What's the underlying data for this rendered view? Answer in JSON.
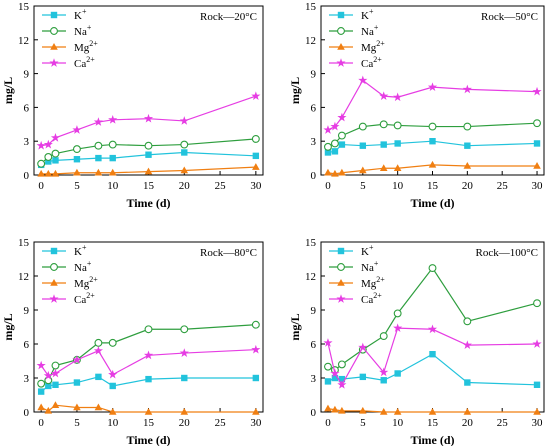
{
  "chart_data": [
    {
      "type": "line",
      "title": "Rock—20°C",
      "xlabel": "Time (d)",
      "ylabel": "mg/L",
      "xlim": [
        -1,
        31
      ],
      "ylim": [
        0,
        15
      ],
      "xticks": [
        0,
        5,
        10,
        15,
        20,
        25,
        30
      ],
      "yticks": [
        0,
        3,
        6,
        9,
        12,
        15
      ],
      "legend": "top-left",
      "x": [
        0,
        1,
        2,
        5,
        8,
        10,
        15,
        20,
        30
      ],
      "series": [
        {
          "name": "K⁺",
          "values": [
            0.9,
            1.2,
            1.3,
            1.4,
            1.5,
            1.5,
            1.8,
            2.0,
            1.7
          ]
        },
        {
          "name": "Na⁺",
          "values": [
            1.0,
            1.6,
            1.9,
            2.3,
            2.6,
            2.7,
            2.6,
            2.7,
            3.2
          ]
        },
        {
          "name": "Mg²⁺",
          "values": [
            0.1,
            0.1,
            0.1,
            0.2,
            0.2,
            0.2,
            0.3,
            0.4,
            0.7
          ]
        },
        {
          "name": "Ca²⁺",
          "values": [
            2.6,
            2.7,
            3.3,
            4.0,
            4.7,
            4.9,
            5.0,
            4.8,
            7.0
          ]
        }
      ]
    },
    {
      "type": "line",
      "title": "Rock—50°C",
      "xlabel": "Time (d)",
      "ylabel": "mg/L",
      "xlim": [
        -1,
        31
      ],
      "ylim": [
        0,
        15
      ],
      "xticks": [
        0,
        5,
        10,
        15,
        20,
        25,
        30
      ],
      "yticks": [
        0,
        3,
        6,
        9,
        12,
        15
      ],
      "legend": "top-left",
      "x": [
        0,
        1,
        2,
        5,
        8,
        10,
        15,
        20,
        30
      ],
      "series": [
        {
          "name": "K⁺",
          "values": [
            2.0,
            2.1,
            2.7,
            2.6,
            2.7,
            2.8,
            3.0,
            2.6,
            2.8
          ]
        },
        {
          "name": "Na⁺",
          "values": [
            2.5,
            2.8,
            3.5,
            4.3,
            4.5,
            4.4,
            4.3,
            4.3,
            4.6
          ]
        },
        {
          "name": "Mg²⁺",
          "values": [
            0.2,
            0.1,
            0.2,
            0.4,
            0.6,
            0.6,
            0.9,
            0.8,
            0.8
          ]
        },
        {
          "name": "Ca²⁺",
          "values": [
            4.0,
            4.3,
            5.1,
            8.4,
            7.0,
            6.9,
            7.8,
            7.6,
            7.4
          ]
        }
      ]
    },
    {
      "type": "line",
      "title": "Rock—80°C",
      "xlabel": "Time (d)",
      "ylabel": "mg/L",
      "xlim": [
        -1,
        31
      ],
      "ylim": [
        0,
        15
      ],
      "xticks": [
        0,
        5,
        10,
        15,
        20,
        25,
        30
      ],
      "yticks": [
        0,
        3,
        6,
        9,
        12,
        15
      ],
      "legend": "top-left",
      "x": [
        0,
        1,
        2,
        5,
        8,
        10,
        15,
        20,
        30
      ],
      "series": [
        {
          "name": "K⁺",
          "values": [
            1.8,
            2.3,
            2.4,
            2.6,
            3.1,
            2.3,
            2.9,
            3.0,
            3.0
          ]
        },
        {
          "name": "Na⁺",
          "values": [
            2.5,
            2.8,
            4.1,
            4.6,
            6.1,
            6.1,
            7.3,
            7.3,
            7.7
          ]
        },
        {
          "name": "Mg²⁺",
          "values": [
            0.4,
            0.1,
            0.6,
            0.4,
            0.4,
            0.0,
            0.0,
            0.0,
            0.0
          ]
        },
        {
          "name": "Ca²⁺",
          "values": [
            4.1,
            3.2,
            3.4,
            4.6,
            5.4,
            3.3,
            5.0,
            5.2,
            5.5
          ]
        }
      ]
    },
    {
      "type": "line",
      "title": "Rock—100°C",
      "xlabel": "Time (d)",
      "ylabel": "mg/L",
      "xlim": [
        -1,
        31
      ],
      "ylim": [
        0,
        15
      ],
      "xticks": [
        0,
        5,
        10,
        15,
        20,
        25,
        30
      ],
      "yticks": [
        0,
        3,
        6,
        9,
        12,
        15
      ],
      "legend": "top-left",
      "x": [
        0,
        1,
        2,
        5,
        8,
        10,
        15,
        20,
        30
      ],
      "series": [
        {
          "name": "K⁺",
          "values": [
            2.7,
            3.0,
            2.9,
            3.1,
            2.8,
            3.4,
            5.1,
            2.6,
            2.4
          ]
        },
        {
          "name": "Na⁺",
          "values": [
            4.0,
            3.7,
            4.2,
            5.5,
            6.7,
            8.7,
            12.7,
            8.0,
            9.6
          ]
        },
        {
          "name": "Mg²⁺",
          "values": [
            0.3,
            0.2,
            0.1,
            0.1,
            0.0,
            0.0,
            0.0,
            0.0,
            0.0
          ]
        },
        {
          "name": "Ca²⁺",
          "values": [
            6.1,
            3.4,
            2.4,
            5.7,
            3.5,
            7.4,
            7.3,
            5.9,
            6.0
          ]
        }
      ]
    }
  ],
  "style": {
    "series_colors": [
      "#22c3dc",
      "#2e9e3e",
      "#f07f12",
      "#e63de3"
    ],
    "series_markers": [
      "square",
      "circle-open",
      "triangle",
      "star"
    ]
  }
}
